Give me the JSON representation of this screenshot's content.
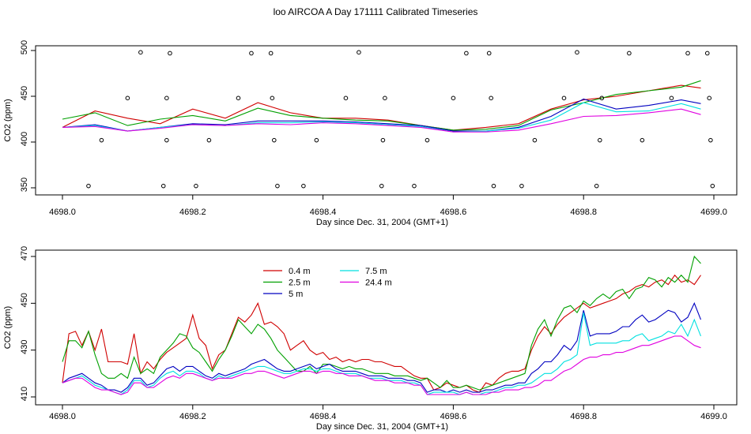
{
  "title": "loo AIRCOA A  Day 171111  Calibrated Timeseries",
  "colors": {
    "0.4 m": "#d00000",
    "2.5 m": "#00a000",
    "5 m": "#0000c0",
    "7.5 m": "#00e0e0",
    "24.4 m": "#e000e0"
  },
  "chart_data": [
    {
      "type": "line",
      "title": "loo AIRCOA A  Day 171111  Calibrated Timeseries",
      "xlabel": "Day since Dec. 31, 2004 (GMT+1)",
      "ylabel": "CO2 (ppm)",
      "xlim": [
        4698.0,
        4699.0
      ],
      "ylim": [
        350,
        500
      ],
      "xticks": [
        "4698.0",
        "4698.2",
        "4698.4",
        "4698.6",
        "4698.8",
        "4699.0"
      ],
      "yticks": [
        "350",
        "400",
        "450",
        "500"
      ],
      "x": [
        4698.0,
        4698.05,
        4698.1,
        4698.15,
        4698.2,
        4698.25,
        4698.3,
        4698.35,
        4698.4,
        4698.45,
        4698.5,
        4698.55,
        4698.6,
        4698.65,
        4698.7,
        4698.75,
        4698.8,
        4698.85,
        4698.9,
        4698.95,
        4698.98
      ],
      "series": [
        {
          "name": "0.4 m",
          "values": [
            416,
            434,
            426,
            420,
            436,
            426,
            443,
            432,
            426,
            426,
            424,
            418,
            413,
            416,
            420,
            436,
            446,
            450,
            456,
            462,
            459
          ]
        },
        {
          "name": "2.5 m",
          "values": [
            425,
            432,
            418,
            425,
            429,
            423,
            437,
            429,
            426,
            424,
            423,
            418,
            413,
            414,
            418,
            435,
            443,
            452,
            456,
            460,
            467
          ]
        },
        {
          "name": "5 m",
          "values": [
            416,
            419,
            412,
            416,
            420,
            419,
            423,
            423,
            423,
            422,
            420,
            418,
            412,
            412,
            416,
            428,
            447,
            436,
            440,
            446,
            442
          ]
        },
        {
          "name": "7.5 m",
          "values": [
            416,
            418,
            412,
            416,
            419,
            418,
            421,
            421,
            422,
            421,
            419,
            417,
            411,
            412,
            415,
            424,
            443,
            433,
            434,
            442,
            436
          ]
        },
        {
          "name": "24.4 m",
          "values": [
            416,
            417,
            412,
            415,
            419,
            418,
            420,
            419,
            421,
            420,
            418,
            416,
            411,
            411,
            413,
            420,
            428,
            429,
            432,
            436,
            430
          ]
        }
      ],
      "points": {
        "x": [
          4698.04,
          4698.06,
          4698.1,
          4698.12,
          4698.155,
          4698.16,
          4698.16,
          4698.165,
          4698.205,
          4698.225,
          4698.27,
          4698.29,
          4698.32,
          4698.322,
          4698.325,
          4698.33,
          4698.37,
          4698.39,
          4698.435,
          4698.455,
          4698.49,
          4698.492,
          4698.495,
          4698.54,
          4698.56,
          4698.6,
          4698.62,
          4698.655,
          4698.658,
          4698.662,
          4698.705,
          4698.725,
          4698.77,
          4698.79,
          4698.82,
          4698.825,
          4698.828,
          4698.87,
          4698.89,
          4698.935,
          4698.96,
          4698.99,
          4698.993,
          4698.995,
          4698.998
        ],
        "y": [
          352,
          402,
          448,
          498,
          352,
          402,
          448,
          497,
          352,
          402,
          448,
          497,
          497,
          448,
          402,
          352,
          352,
          402,
          448,
          498,
          352,
          402,
          448,
          352,
          402,
          448,
          497,
          497,
          448,
          352,
          352,
          402,
          448,
          498,
          352,
          402,
          448,
          497,
          402,
          448,
          497,
          497,
          448,
          402,
          352
        ]
      },
      "grid": false
    },
    {
      "type": "line",
      "xlabel": "Day since Dec. 31, 2004 (GMT+1)",
      "ylabel": "CO2 (ppm)",
      "xlim": [
        4698.0,
        4699.0
      ],
      "ylim": [
        410,
        470
      ],
      "xticks": [
        "4698.0",
        "4698.2",
        "4698.4",
        "4698.6",
        "4698.8",
        "4699.0"
      ],
      "yticks": [
        "410",
        "430",
        "450",
        "470"
      ],
      "legend": {
        "position": "top-left",
        "entries": [
          "0.4 m",
          "2.5 m",
          "5 m",
          "7.5 m",
          "24.4 m"
        ]
      },
      "x": [
        4698.0,
        4698.01,
        4698.02,
        4698.03,
        4698.04,
        4698.05,
        4698.06,
        4698.07,
        4698.08,
        4698.09,
        4698.1,
        4698.11,
        4698.12,
        4698.13,
        4698.14,
        4698.15,
        4698.16,
        4698.17,
        4698.18,
        4698.19,
        4698.2,
        4698.21,
        4698.22,
        4698.23,
        4698.24,
        4698.25,
        4698.26,
        4698.27,
        4698.28,
        4698.29,
        4698.3,
        4698.31,
        4698.32,
        4698.33,
        4698.34,
        4698.35,
        4698.36,
        4698.37,
        4698.38,
        4698.39,
        4698.4,
        4698.41,
        4698.42,
        4698.43,
        4698.44,
        4698.45,
        4698.46,
        4698.47,
        4698.48,
        4698.49,
        4698.5,
        4698.51,
        4698.52,
        4698.53,
        4698.54,
        4698.55,
        4698.56,
        4698.57,
        4698.58,
        4698.59,
        4698.6,
        4698.61,
        4698.62,
        4698.63,
        4698.64,
        4698.65,
        4698.66,
        4698.67,
        4698.68,
        4698.69,
        4698.7,
        4698.71,
        4698.72,
        4698.73,
        4698.74,
        4698.75,
        4698.76,
        4698.77,
        4698.78,
        4698.79,
        4698.8,
        4698.81,
        4698.82,
        4698.83,
        4698.84,
        4698.85,
        4698.86,
        4698.87,
        4698.88,
        4698.89,
        4698.9,
        4698.91,
        4698.92,
        4698.93,
        4698.94,
        4698.95,
        4698.96,
        4698.97,
        4698.98
      ],
      "series": [
        {
          "name": "0.4 m",
          "values": [
            416,
            437,
            438,
            432,
            438,
            430,
            439,
            425,
            425,
            425,
            424,
            437,
            420,
            425,
            422,
            426,
            429,
            431,
            433,
            435,
            445,
            435,
            432,
            422,
            428,
            430,
            437,
            444,
            442,
            445,
            450,
            441,
            442,
            440,
            437,
            430,
            432,
            434,
            430,
            428,
            429,
            426,
            427,
            425,
            426,
            425,
            426,
            426,
            425,
            425,
            424,
            423,
            423,
            421,
            419,
            418,
            418,
            413,
            414,
            416,
            415,
            414,
            415,
            413,
            412,
            416,
            415,
            418,
            420,
            421,
            421,
            422,
            430,
            436,
            440,
            437,
            441,
            444,
            446,
            448,
            450,
            448,
            449,
            450,
            451,
            452,
            454,
            455,
            457,
            458,
            457,
            459,
            460,
            458,
            462,
            459,
            460,
            458,
            462
          ]
        },
        {
          "name": "2.5 m",
          "values": [
            425,
            434,
            434,
            431,
            438,
            428,
            420,
            418,
            418,
            420,
            418,
            427,
            420,
            422,
            420,
            427,
            430,
            433,
            437,
            436,
            431,
            429,
            425,
            421,
            426,
            430,
            436,
            443,
            440,
            437,
            441,
            439,
            435,
            430,
            427,
            424,
            421,
            421,
            423,
            420,
            424,
            424,
            423,
            422,
            423,
            422,
            422,
            421,
            420,
            420,
            420,
            419,
            419,
            419,
            418,
            417,
            418,
            416,
            414,
            417,
            414,
            414,
            415,
            414,
            413,
            414,
            415,
            416,
            417,
            418,
            419,
            420,
            432,
            439,
            443,
            436,
            443,
            448,
            449,
            446,
            451,
            449,
            452,
            454,
            452,
            455,
            456,
            452,
            456,
            457,
            461,
            460,
            457,
            461,
            459,
            462,
            459,
            470,
            467
          ]
        },
        {
          "name": "5 m",
          "values": [
            416,
            418,
            419,
            420,
            418,
            416,
            415,
            413,
            413,
            412,
            414,
            418,
            418,
            415,
            416,
            419,
            422,
            423,
            421,
            423,
            423,
            421,
            419,
            418,
            420,
            419,
            420,
            421,
            422,
            424,
            425,
            426,
            424,
            422,
            421,
            421,
            422,
            423,
            424,
            422,
            423,
            424,
            422,
            421,
            421,
            421,
            420,
            419,
            419,
            419,
            418,
            418,
            418,
            417,
            417,
            416,
            412,
            413,
            413,
            412,
            413,
            412,
            413,
            412,
            412,
            413,
            413,
            414,
            415,
            415,
            416,
            416,
            420,
            422,
            425,
            425,
            428,
            432,
            430,
            434,
            447,
            436,
            437,
            437,
            437,
            438,
            440,
            440,
            443,
            445,
            442,
            443,
            445,
            447,
            446,
            442,
            444,
            450,
            443
          ]
        },
        {
          "name": "7.5 m",
          "values": [
            416,
            417,
            418,
            419,
            417,
            415,
            414,
            413,
            412,
            411,
            413,
            417,
            417,
            414,
            415,
            418,
            420,
            421,
            419,
            421,
            421,
            420,
            418,
            417,
            419,
            418,
            419,
            420,
            421,
            422,
            423,
            423,
            422,
            421,
            420,
            420,
            421,
            422,
            422,
            421,
            422,
            422,
            421,
            420,
            420,
            420,
            419,
            418,
            418,
            418,
            417,
            417,
            417,
            416,
            416,
            415,
            411,
            412,
            412,
            412,
            412,
            411,
            412,
            411,
            411,
            412,
            412,
            413,
            414,
            414,
            415,
            415,
            416,
            418,
            420,
            420,
            422,
            425,
            426,
            428,
            446,
            432,
            433,
            433,
            433,
            433,
            434,
            434,
            436,
            437,
            434,
            435,
            436,
            438,
            437,
            441,
            436,
            443,
            436
          ]
        },
        {
          "name": "24.4 m",
          "values": [
            416,
            417,
            418,
            418,
            416,
            414,
            413,
            413,
            412,
            411,
            412,
            416,
            416,
            414,
            414,
            416,
            418,
            419,
            418,
            420,
            420,
            419,
            418,
            417,
            418,
            418,
            418,
            419,
            420,
            420,
            421,
            421,
            420,
            419,
            418,
            419,
            420,
            421,
            421,
            420,
            421,
            421,
            420,
            420,
            419,
            419,
            419,
            418,
            417,
            417,
            417,
            416,
            416,
            416,
            415,
            415,
            411,
            411,
            411,
            411,
            411,
            411,
            412,
            411,
            411,
            411,
            412,
            412,
            413,
            413,
            413,
            414,
            414,
            415,
            417,
            417,
            419,
            421,
            422,
            424,
            426,
            427,
            427,
            428,
            428,
            429,
            429,
            430,
            431,
            432,
            432,
            433,
            434,
            435,
            436,
            436,
            434,
            432,
            431
          ]
        }
      ],
      "grid": false
    }
  ]
}
